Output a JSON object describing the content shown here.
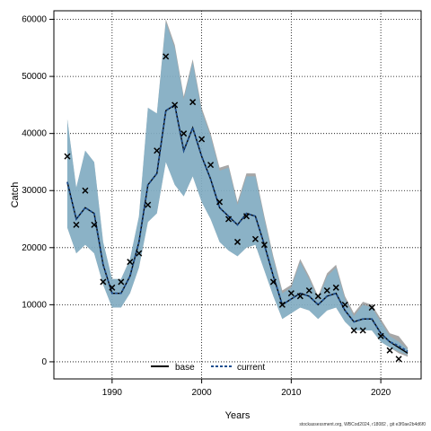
{
  "chart_data": {
    "type": "line",
    "xlabel": "Years",
    "ylabel": "Catch",
    "xlim": [
      1983.5,
      2024.5
    ],
    "ylim": [
      -3000,
      61500
    ],
    "x_ticks": [
      1990,
      2000,
      2010,
      2020
    ],
    "y_ticks": [
      0,
      10000,
      20000,
      30000,
      40000,
      50000,
      60000
    ],
    "grid": true,
    "legend_position": "bottom-center",
    "series": [
      {
        "name": "base",
        "color": "#000000",
        "style": "solid",
        "x": [
          1985,
          1986,
          1987,
          1988,
          1989,
          1990,
          1991,
          1992,
          1993,
          1994,
          1995,
          1996,
          1997,
          1998,
          1999,
          2000,
          2001,
          2002,
          2003,
          2004,
          2005,
          2006,
          2007,
          2008,
          2009,
          2010,
          2011,
          2012,
          2013,
          2014,
          2015,
          2016,
          2017,
          2018,
          2019,
          2020,
          2021,
          2022,
          2023
        ],
        "values": [
          31500,
          25000,
          27000,
          26000,
          17000,
          12000,
          12000,
          15000,
          21000,
          31000,
          33000,
          44000,
          45000,
          37000,
          41000,
          36000,
          32000,
          27000,
          25500,
          24000,
          26000,
          25500,
          20500,
          15000,
          10000,
          11000,
          12000,
          11500,
          10000,
          11500,
          12000,
          9000,
          7000,
          7500,
          7500,
          5000,
          3500,
          2500,
          1500
        ],
        "band_lower": [
          23500,
          19000,
          20500,
          19000,
          13500,
          9500,
          9500,
          12000,
          16500,
          24500,
          26000,
          35000,
          31000,
          29000,
          32500,
          28000,
          25000,
          21000,
          19500,
          18500,
          20000,
          20500,
          16000,
          11500,
          7500,
          8500,
          9500,
          9000,
          7500,
          9000,
          9500,
          7000,
          5500,
          5500,
          5500,
          3500,
          2500,
          1500,
          900
        ],
        "band_upper": [
          42500,
          30500,
          37000,
          35000,
          21000,
          14500,
          14500,
          18000,
          25500,
          44500,
          43500,
          60000,
          55500,
          46500,
          53000,
          44500,
          40000,
          34000,
          34500,
          28000,
          33000,
          33000,
          25500,
          18500,
          12500,
          13500,
          18000,
          15000,
          11500,
          15500,
          17000,
          11500,
          8500,
          10500,
          10000,
          7500,
          5000,
          4500,
          2500
        ]
      },
      {
        "name": "current",
        "color": "#1f4f8f",
        "style": "dashed",
        "band_color": "#7fb6d3",
        "x": [
          1985,
          1986,
          1987,
          1988,
          1989,
          1990,
          1991,
          1992,
          1993,
          1994,
          1995,
          1996,
          1997,
          1998,
          1999,
          2000,
          2001,
          2002,
          2003,
          2004,
          2005,
          2006,
          2007,
          2008,
          2009,
          2010,
          2011,
          2012,
          2013,
          2014,
          2015,
          2016,
          2017,
          2018,
          2019,
          2020,
          2021,
          2022,
          2023
        ],
        "values": [
          31500,
          25000,
          27000,
          26000,
          17000,
          12000,
          12000,
          15000,
          21000,
          31000,
          33000,
          44000,
          45000,
          37000,
          41000,
          36000,
          32000,
          27000,
          25500,
          24000,
          26000,
          25500,
          20500,
          15000,
          10000,
          11000,
          12000,
          11500,
          10000,
          11500,
          12000,
          9000,
          7000,
          7500,
          7500,
          5000,
          3500,
          2800,
          1800
        ],
        "band_lower": [
          23500,
          19000,
          20500,
          19000,
          13500,
          9500,
          9500,
          12000,
          16500,
          24500,
          26000,
          35000,
          31000,
          29000,
          32500,
          28000,
          25000,
          21000,
          19500,
          18500,
          20000,
          20500,
          16000,
          11500,
          7500,
          8500,
          9500,
          9000,
          7500,
          9000,
          9500,
          7000,
          5500,
          5500,
          5500,
          3500,
          2500,
          1800,
          1200
        ],
        "band_upper": [
          42500,
          30500,
          37000,
          35000,
          21000,
          14500,
          14500,
          18000,
          25500,
          44500,
          43500,
          59500,
          55000,
          46000,
          52500,
          44000,
          39500,
          33500,
          34000,
          27500,
          32500,
          32500,
          25000,
          18000,
          12000,
          13000,
          17500,
          14500,
          11000,
          15000,
          16500,
          11000,
          8000,
          10000,
          9500,
          7000,
          4500,
          3500,
          2200
        ]
      },
      {
        "name": "observed",
        "marker": "x",
        "x": [
          1985,
          1986,
          1987,
          1988,
          1989,
          1990,
          1991,
          1992,
          1993,
          1994,
          1995,
          1996,
          1997,
          1998,
          1999,
          2000,
          2001,
          2002,
          2003,
          2004,
          2005,
          2006,
          2007,
          2008,
          2009,
          2010,
          2011,
          2012,
          2013,
          2014,
          2015,
          2016,
          2017,
          2018,
          2019,
          2020,
          2021,
          2022
        ],
        "values": [
          36000,
          24000,
          30000,
          24000,
          14000,
          13000,
          14000,
          17500,
          19000,
          27500,
          37000,
          53500,
          45000,
          40000,
          45500,
          39000,
          34500,
          28000,
          25000,
          21000,
          25500,
          21500,
          20500,
          14000,
          10000,
          12000,
          11500,
          12500,
          11500,
          12500,
          13000,
          10000,
          5500,
          5500,
          9500,
          4500,
          2000,
          500
        ]
      }
    ],
    "legend": [
      {
        "label": "base",
        "style": "solid"
      },
      {
        "label": "current",
        "style": "dashed"
      }
    ]
  },
  "footnote": "stockassessment.org, WBCod2024, r18082 , git e3f0ae2b4d6f0"
}
